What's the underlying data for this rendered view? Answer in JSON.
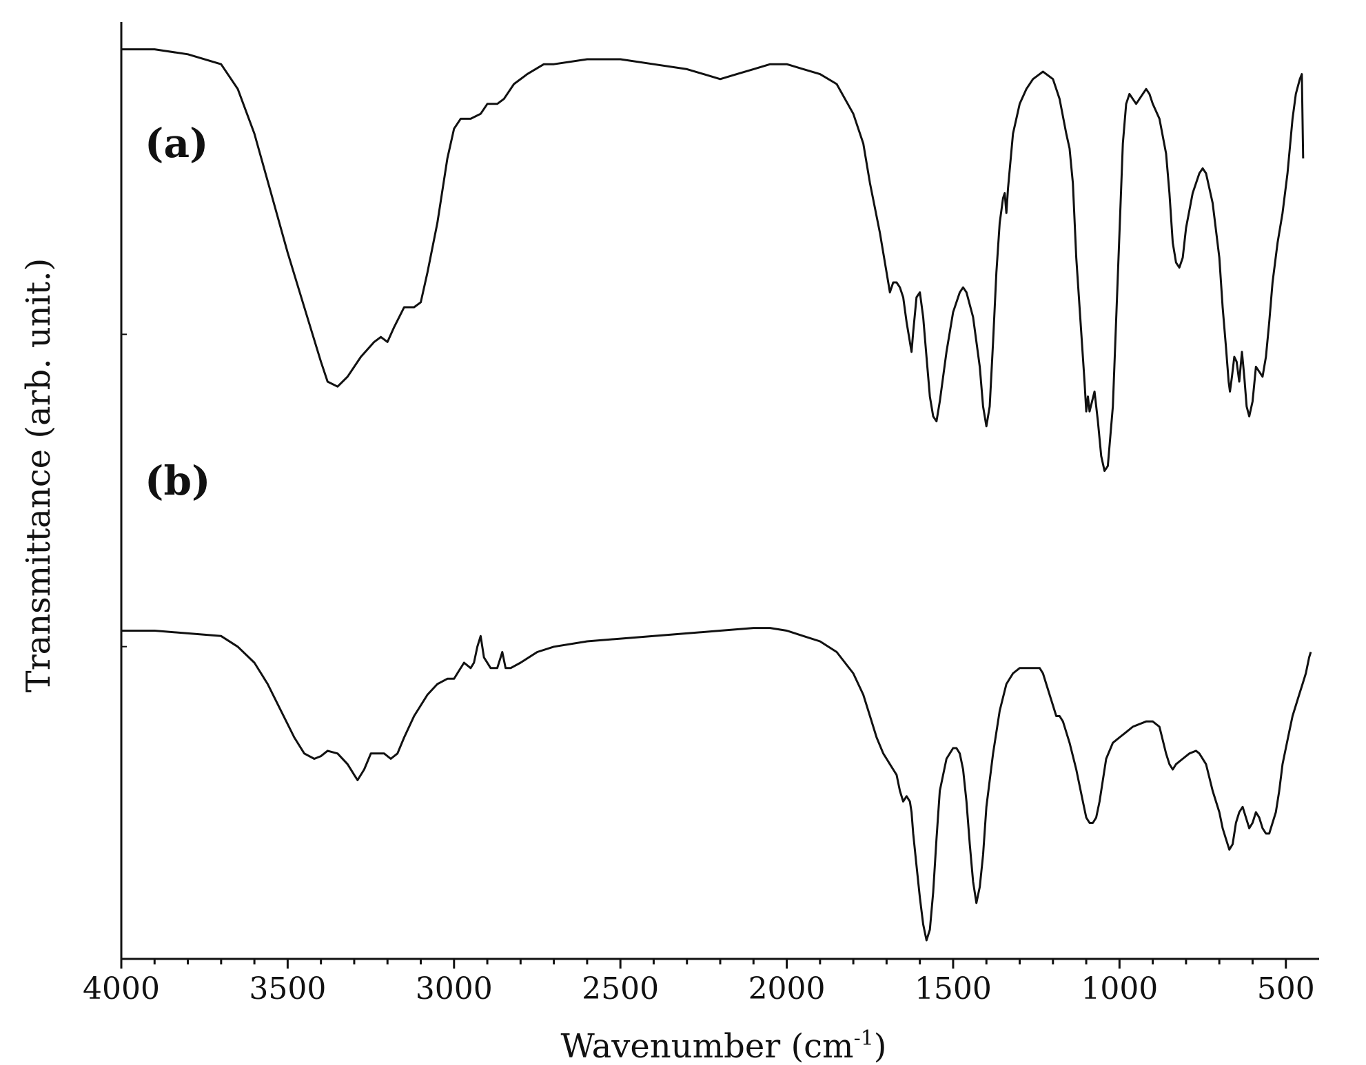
{
  "chart_data": {
    "type": "line",
    "title": "",
    "xlabel": "Wavenumber (cm",
    "xlabel_superscript": "-1",
    "xlabel_close": ")",
    "ylabel": "Transmittance (arb. unit.)",
    "xlim": [
      4000,
      400
    ],
    "x_reversed": true,
    "xticks": [
      4000,
      3500,
      3000,
      2500,
      2000,
      1500,
      1000,
      500
    ],
    "xtick_labels": [
      "4000",
      "3500",
      "3000",
      "2500",
      "2000",
      "1500",
      "1000",
      "500"
    ],
    "ylim": [
      0,
      100
    ],
    "yticks_labeled": false,
    "grid": false,
    "legend": "none",
    "series": [
      {
        "name": "(a)",
        "values": [
          [
            4000,
            97
          ],
          [
            3900,
            97
          ],
          [
            3800,
            96
          ],
          [
            3700,
            94
          ],
          [
            3650,
            89
          ],
          [
            3600,
            80
          ],
          [
            3550,
            68
          ],
          [
            3500,
            56
          ],
          [
            3450,
            45
          ],
          [
            3400,
            34
          ],
          [
            3380,
            30
          ],
          [
            3350,
            29
          ],
          [
            3320,
            31
          ],
          [
            3280,
            35
          ],
          [
            3240,
            38
          ],
          [
            3220,
            39
          ],
          [
            3200,
            38
          ],
          [
            3180,
            41
          ],
          [
            3150,
            45
          ],
          [
            3120,
            45
          ],
          [
            3100,
            46
          ],
          [
            3080,
            52
          ],
          [
            3050,
            62
          ],
          [
            3020,
            75
          ],
          [
            3000,
            81
          ],
          [
            2980,
            83
          ],
          [
            2950,
            83
          ],
          [
            2920,
            84
          ],
          [
            2900,
            86
          ],
          [
            2870,
            86
          ],
          [
            2850,
            87
          ],
          [
            2820,
            90
          ],
          [
            2780,
            92
          ],
          [
            2730,
            94
          ],
          [
            2700,
            94
          ],
          [
            2600,
            95
          ],
          [
            2500,
            95
          ],
          [
            2400,
            94
          ],
          [
            2300,
            93
          ],
          [
            2250,
            92
          ],
          [
            2200,
            91
          ],
          [
            2150,
            92
          ],
          [
            2100,
            93
          ],
          [
            2050,
            94
          ],
          [
            2000,
            94
          ],
          [
            1950,
            93
          ],
          [
            1900,
            92
          ],
          [
            1850,
            90
          ],
          [
            1800,
            84
          ],
          [
            1770,
            78
          ],
          [
            1750,
            70
          ],
          [
            1720,
            60
          ],
          [
            1700,
            52
          ],
          [
            1690,
            48
          ],
          [
            1680,
            50
          ],
          [
            1670,
            50
          ],
          [
            1660,
            49
          ],
          [
            1650,
            47
          ],
          [
            1640,
            42
          ],
          [
            1630,
            38
          ],
          [
            1625,
            36
          ],
          [
            1620,
            40
          ],
          [
            1610,
            47
          ],
          [
            1600,
            48
          ],
          [
            1590,
            43
          ],
          [
            1580,
            35
          ],
          [
            1570,
            27
          ],
          [
            1560,
            23
          ],
          [
            1550,
            22
          ],
          [
            1540,
            26
          ],
          [
            1520,
            36
          ],
          [
            1500,
            44
          ],
          [
            1480,
            48
          ],
          [
            1470,
            49
          ],
          [
            1460,
            48
          ],
          [
            1440,
            43
          ],
          [
            1420,
            33
          ],
          [
            1410,
            25
          ],
          [
            1400,
            21
          ],
          [
            1390,
            25
          ],
          [
            1380,
            38
          ],
          [
            1370,
            52
          ],
          [
            1360,
            62
          ],
          [
            1350,
            67
          ],
          [
            1345,
            68
          ],
          [
            1340,
            64
          ],
          [
            1335,
            69
          ],
          [
            1320,
            80
          ],
          [
            1300,
            86
          ],
          [
            1280,
            89
          ],
          [
            1260,
            91
          ],
          [
            1240,
            92
          ],
          [
            1230,
            92.5
          ],
          [
            1220,
            92
          ],
          [
            1200,
            91
          ],
          [
            1180,
            87
          ],
          [
            1160,
            80
          ],
          [
            1150,
            77
          ],
          [
            1140,
            70
          ],
          [
            1130,
            55
          ],
          [
            1115,
            40
          ],
          [
            1105,
            30
          ],
          [
            1100,
            24
          ],
          [
            1095,
            27
          ],
          [
            1090,
            24
          ],
          [
            1075,
            28
          ],
          [
            1065,
            22
          ],
          [
            1055,
            15
          ],
          [
            1045,
            12
          ],
          [
            1035,
            13
          ],
          [
            1020,
            25
          ],
          [
            1000,
            60
          ],
          [
            990,
            78
          ],
          [
            980,
            86
          ],
          [
            970,
            88
          ],
          [
            960,
            87
          ],
          [
            950,
            86
          ],
          [
            940,
            87
          ],
          [
            930,
            88
          ],
          [
            920,
            89
          ],
          [
            910,
            88
          ],
          [
            900,
            86
          ],
          [
            880,
            83
          ],
          [
            860,
            76
          ],
          [
            850,
            68
          ],
          [
            840,
            58
          ],
          [
            830,
            54
          ],
          [
            820,
            53
          ],
          [
            810,
            55
          ],
          [
            800,
            61
          ],
          [
            780,
            68
          ],
          [
            760,
            72
          ],
          [
            750,
            73
          ],
          [
            740,
            72
          ],
          [
            720,
            66
          ],
          [
            700,
            55
          ],
          [
            690,
            45
          ],
          [
            680,
            37
          ],
          [
            672,
            30
          ],
          [
            668,
            28
          ],
          [
            662,
            31
          ],
          [
            655,
            35
          ],
          [
            648,
            34
          ],
          [
            640,
            30
          ],
          [
            632,
            36
          ],
          [
            625,
            31
          ],
          [
            618,
            25
          ],
          [
            610,
            23
          ],
          [
            600,
            26
          ],
          [
            590,
            33
          ],
          [
            580,
            32
          ],
          [
            570,
            31
          ],
          [
            560,
            35
          ],
          [
            550,
            42
          ],
          [
            540,
            50
          ],
          [
            525,
            58
          ],
          [
            510,
            64
          ],
          [
            495,
            72
          ],
          [
            480,
            83
          ],
          [
            470,
            88
          ],
          [
            458,
            91
          ],
          [
            452,
            92
          ],
          [
            448,
            75
          ]
        ]
      },
      {
        "name": "(b)",
        "values": [
          [
            4000,
            58
          ],
          [
            3900,
            58
          ],
          [
            3800,
            57.5
          ],
          [
            3700,
            57
          ],
          [
            3650,
            55
          ],
          [
            3600,
            52
          ],
          [
            3560,
            48
          ],
          [
            3520,
            43
          ],
          [
            3480,
            38
          ],
          [
            3450,
            35
          ],
          [
            3420,
            34
          ],
          [
            3400,
            34.5
          ],
          [
            3380,
            35.5
          ],
          [
            3350,
            35
          ],
          [
            3320,
            33
          ],
          [
            3300,
            31
          ],
          [
            3290,
            30
          ],
          [
            3270,
            32
          ],
          [
            3250,
            35
          ],
          [
            3230,
            35
          ],
          [
            3210,
            35
          ],
          [
            3190,
            34
          ],
          [
            3170,
            35
          ],
          [
            3150,
            38
          ],
          [
            3120,
            42
          ],
          [
            3080,
            46
          ],
          [
            3050,
            48
          ],
          [
            3020,
            49
          ],
          [
            3000,
            49
          ],
          [
            2990,
            50
          ],
          [
            2970,
            52
          ],
          [
            2950,
            51
          ],
          [
            2940,
            52
          ],
          [
            2930,
            55
          ],
          [
            2920,
            57
          ],
          [
            2910,
            53
          ],
          [
            2890,
            51
          ],
          [
            2870,
            51
          ],
          [
            2860,
            53
          ],
          [
            2855,
            54
          ],
          [
            2845,
            51
          ],
          [
            2830,
            51
          ],
          [
            2800,
            52
          ],
          [
            2750,
            54
          ],
          [
            2700,
            55
          ],
          [
            2600,
            56
          ],
          [
            2500,
            56.5
          ],
          [
            2400,
            57
          ],
          [
            2300,
            57.5
          ],
          [
            2200,
            58
          ],
          [
            2100,
            58.5
          ],
          [
            2050,
            58.5
          ],
          [
            2000,
            58
          ],
          [
            1950,
            57
          ],
          [
            1900,
            56
          ],
          [
            1850,
            54
          ],
          [
            1800,
            50
          ],
          [
            1770,
            46
          ],
          [
            1750,
            42
          ],
          [
            1730,
            38
          ],
          [
            1710,
            35
          ],
          [
            1700,
            34
          ],
          [
            1690,
            33
          ],
          [
            1680,
            32
          ],
          [
            1670,
            31
          ],
          [
            1660,
            28
          ],
          [
            1650,
            26
          ],
          [
            1640,
            27
          ],
          [
            1630,
            26
          ],
          [
            1625,
            24
          ],
          [
            1620,
            20
          ],
          [
            1610,
            14
          ],
          [
            1600,
            8
          ],
          [
            1590,
            3
          ],
          [
            1580,
            0
          ],
          [
            1570,
            2
          ],
          [
            1560,
            9
          ],
          [
            1550,
            19
          ],
          [
            1540,
            28
          ],
          [
            1520,
            34
          ],
          [
            1500,
            36
          ],
          [
            1490,
            36
          ],
          [
            1480,
            35
          ],
          [
            1470,
            32
          ],
          [
            1460,
            26
          ],
          [
            1450,
            18
          ],
          [
            1440,
            11
          ],
          [
            1430,
            7
          ],
          [
            1420,
            10
          ],
          [
            1410,
            16
          ],
          [
            1400,
            25
          ],
          [
            1380,
            35
          ],
          [
            1360,
            43
          ],
          [
            1340,
            48
          ],
          [
            1320,
            50
          ],
          [
            1300,
            51
          ],
          [
            1280,
            51
          ],
          [
            1260,
            51
          ],
          [
            1240,
            51
          ],
          [
            1230,
            50
          ],
          [
            1220,
            48
          ],
          [
            1200,
            44
          ],
          [
            1190,
            42
          ],
          [
            1180,
            42
          ],
          [
            1170,
            41
          ],
          [
            1150,
            37
          ],
          [
            1130,
            32
          ],
          [
            1110,
            26
          ],
          [
            1100,
            23
          ],
          [
            1090,
            22
          ],
          [
            1080,
            22
          ],
          [
            1070,
            23
          ],
          [
            1060,
            26
          ],
          [
            1050,
            30
          ],
          [
            1040,
            34
          ],
          [
            1020,
            37
          ],
          [
            1000,
            38
          ],
          [
            980,
            39
          ],
          [
            960,
            40
          ],
          [
            940,
            40.5
          ],
          [
            920,
            41
          ],
          [
            900,
            41
          ],
          [
            880,
            40
          ],
          [
            860,
            35
          ],
          [
            850,
            33
          ],
          [
            840,
            32
          ],
          [
            830,
            33
          ],
          [
            810,
            34
          ],
          [
            790,
            35
          ],
          [
            770,
            35.5
          ],
          [
            760,
            35
          ],
          [
            740,
            33
          ],
          [
            720,
            28
          ],
          [
            700,
            24
          ],
          [
            690,
            21
          ],
          [
            680,
            19
          ],
          [
            670,
            17
          ],
          [
            660,
            18
          ],
          [
            650,
            22
          ],
          [
            640,
            24
          ],
          [
            630,
            25
          ],
          [
            620,
            23
          ],
          [
            610,
            21
          ],
          [
            600,
            22
          ],
          [
            590,
            24
          ],
          [
            580,
            23
          ],
          [
            570,
            21
          ],
          [
            560,
            20
          ],
          [
            550,
            20
          ],
          [
            540,
            22
          ],
          [
            530,
            24
          ],
          [
            520,
            28
          ],
          [
            510,
            33
          ],
          [
            500,
            36
          ],
          [
            490,
            39
          ],
          [
            480,
            42
          ],
          [
            470,
            44
          ],
          [
            460,
            46
          ],
          [
            450,
            48
          ],
          [
            440,
            50
          ],
          [
            430,
            53
          ],
          [
            425,
            54
          ]
        ]
      }
    ]
  }
}
